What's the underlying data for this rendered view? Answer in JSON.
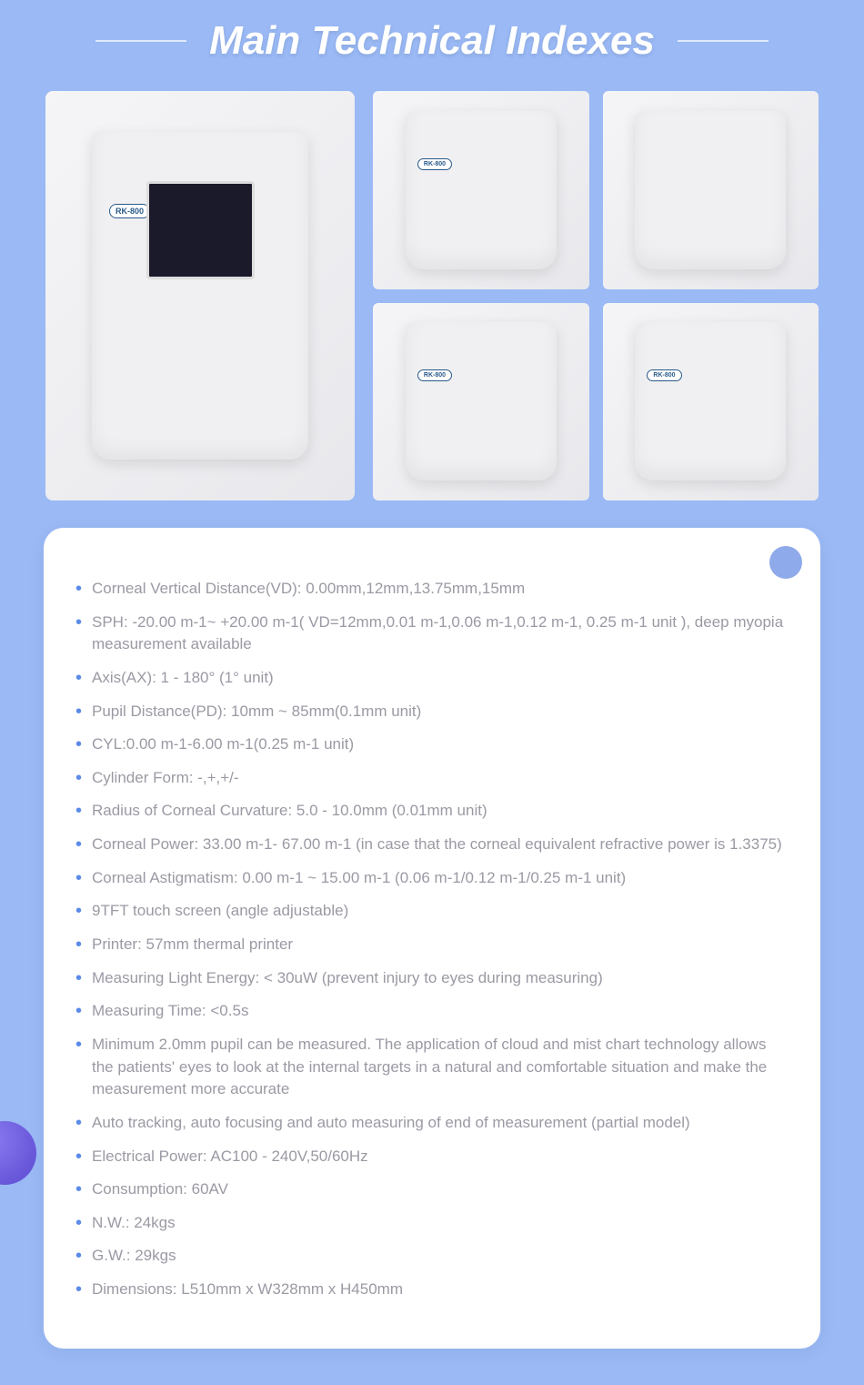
{
  "title": "Main Technical Indexes",
  "product_model": "RK-800",
  "colors": {
    "page_bg": "#9ab9f5",
    "card_bg": "#ffffff",
    "title_color": "#ffffff",
    "bullet_color": "#5b8ae8",
    "text_color": "#9a9aa4",
    "corner_circle": "#8faaea",
    "header_line": "rgba(255,255,255,0.7)"
  },
  "typography": {
    "title_fontsize": 44,
    "spec_fontsize": 17,
    "title_style": "italic bold"
  },
  "specs": [
    "Corneal Vertical Distance(VD): 0.00mm,12mm,13.75mm,15mm",
    "SPH: -20.00 m-1~ +20.00 m-1( VD=12mm,0.01 m-1,0.06 m-1,0.12 m-1, 0.25 m-1 unit ), deep myopia measurement available",
    "Axis(AX): 1 - 180° (1° unit)",
    "Pupil Distance(PD): 10mm ~ 85mm(0.1mm unit)",
    "CYL:0.00 m-1-6.00 m-1(0.25 m-1 unit)",
    "Cylinder Form: -,+,+/-",
    "Radius of Corneal Curvature: 5.0 - 10.0mm (0.01mm unit)",
    "Corneal Power: 33.00 m-1- 67.00 m-1 (in case that the corneal equivalent refractive power is 1.3375)",
    "Corneal Astigmatism: 0.00 m-1 ~ 15.00 m-1 (0.06 m-1/0.12 m-1/0.25 m-1 unit)",
    "9TFT touch screen (angle adjustable)",
    "Printer: 57mm thermal printer",
    "Measuring Light Energy: < 30uW (prevent injury to eyes during measuring)",
    "Measuring Time: <0.5s",
    "Minimum 2.0mm pupil can be measured. The application of cloud and mist chart technology allows the patients' eyes to look at the internal targets in a natural and comfortable situation and make the measurement more accurate",
    "Auto tracking, auto focusing and auto measuring of end of measurement (partial model)",
    "Electrical Power: AC100 - 240V,50/60Hz",
    "Consumption: 60AV",
    "N.W.: 24kgs",
    "G.W.: 29kgs",
    "Dimensions: L510mm x W328mm x H450mm"
  ]
}
